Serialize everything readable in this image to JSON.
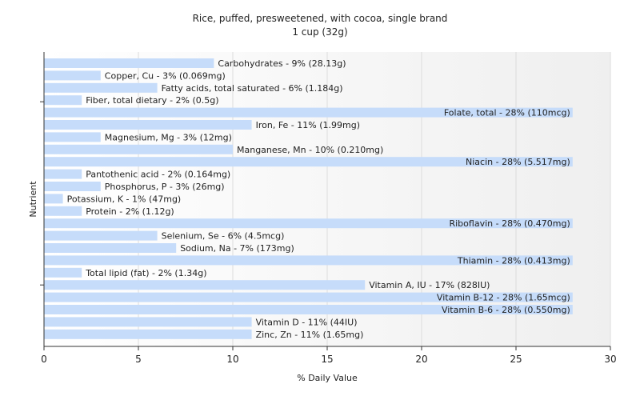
{
  "chart_data": {
    "type": "bar",
    "orientation": "horizontal",
    "title": "Rice, puffed, presweetened, with cocoa, single brand",
    "subtitle": "1 cup (32g)",
    "xlabel": "% Daily Value",
    "ylabel": "Nutrient",
    "xlim": [
      0,
      30
    ],
    "xticks": [
      "0",
      "5",
      "10",
      "15",
      "20",
      "25",
      "30"
    ],
    "bar_color": "#c6dcfa",
    "grid": "vertical",
    "categories": [
      "Carbohydrates",
      "Copper, Cu",
      "Fatty acids, total saturated",
      "Fiber, total dietary",
      "Folate, total",
      "Iron, Fe",
      "Magnesium, Mg",
      "Manganese, Mn",
      "Niacin",
      "Pantothenic acid",
      "Phosphorus, P",
      "Potassium, K",
      "Protein",
      "Riboflavin",
      "Selenium, Se",
      "Sodium, Na",
      "Thiamin",
      "Total lipid (fat)",
      "Vitamin A, IU",
      "Vitamin B-12",
      "Vitamin B-6",
      "Vitamin D",
      "Zinc, Zn"
    ],
    "values": [
      9,
      3,
      6,
      2,
      28,
      11,
      3,
      10,
      28,
      2,
      3,
      1,
      2,
      28,
      6,
      7,
      28,
      2,
      17,
      28,
      28,
      11,
      11
    ],
    "labels": [
      "Carbohydrates - 9% (28.13g)",
      "Copper, Cu - 3% (0.069mg)",
      "Fatty acids, total saturated - 6% (1.184g)",
      "Fiber, total dietary - 2% (0.5g)",
      "Folate, total - 28% (110mcg)",
      "Iron, Fe - 11% (1.99mg)",
      "Magnesium, Mg - 3% (12mg)",
      "Manganese, Mn - 10% (0.210mg)",
      "Niacin - 28% (5.517mg)",
      "Pantothenic acid - 2% (0.164mg)",
      "Phosphorus, P - 3% (26mg)",
      "Potassium, K - 1% (47mg)",
      "Protein - 2% (1.12g)",
      "Riboflavin - 28% (0.470mg)",
      "Selenium, Se - 6% (4.5mcg)",
      "Sodium, Na - 7% (173mg)",
      "Thiamin - 28% (0.413mg)",
      "Total lipid (fat) - 2% (1.34g)",
      "Vitamin A, IU - 17% (828IU)",
      "Vitamin B-12 - 28% (1.65mcg)",
      "Vitamin B-6 - 28% (0.550mg)",
      "Vitamin D - 11% (44IU)",
      "Zinc, Zn - 11% (1.65mg)"
    ]
  }
}
